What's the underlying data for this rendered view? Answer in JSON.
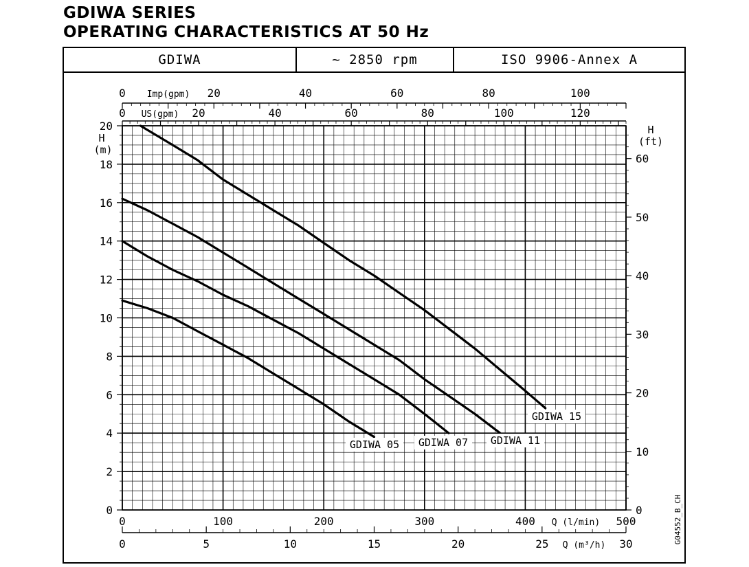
{
  "page": {
    "title_line1": "GDIWA SERIES",
    "title_line2": "OPERATING CHARACTERISTICS AT 50 Hz"
  },
  "header": {
    "model": "GDIWA",
    "speed": "~ 2850 rpm",
    "standard": "ISO 9906-Annex A"
  },
  "chart_data": {
    "type": "line",
    "series": [
      {
        "name": "GDIWA 05",
        "x": [
          0,
          25,
          50,
          75,
          100,
          125,
          150,
          175,
          200,
          225,
          250
        ],
        "y": [
          10.9,
          10.5,
          10.0,
          9.3,
          8.6,
          7.9,
          7.1,
          6.3,
          5.5,
          4.6,
          3.8
        ]
      },
      {
        "name": "GDIWA 07",
        "x": [
          0,
          25,
          50,
          75,
          100,
          125,
          150,
          175,
          200,
          225,
          250,
          275,
          300,
          324
        ],
        "y": [
          14.0,
          13.2,
          12.5,
          11.9,
          11.2,
          10.6,
          9.9,
          9.2,
          8.4,
          7.6,
          6.8,
          6.0,
          5.0,
          4.0
        ]
      },
      {
        "name": "GDIWA 11",
        "x": [
          0,
          25,
          50,
          75,
          100,
          125,
          150,
          175,
          200,
          225,
          250,
          275,
          300,
          325,
          350,
          375
        ],
        "y": [
          16.2,
          15.6,
          14.9,
          14.2,
          13.4,
          12.6,
          11.8,
          11.0,
          10.2,
          9.4,
          8.6,
          7.8,
          6.8,
          5.9,
          5.0,
          4.0
        ]
      },
      {
        "name": "GDIWA 15",
        "x": [
          18,
          50,
          75,
          100,
          125,
          150,
          175,
          200,
          225,
          250,
          275,
          300,
          325,
          350,
          375,
          400,
          420
        ],
        "y": [
          20.0,
          19.0,
          18.2,
          17.2,
          16.4,
          15.6,
          14.8,
          13.9,
          13.0,
          12.2,
          11.3,
          10.4,
          9.4,
          8.4,
          7.3,
          6.2,
          5.3
        ]
      }
    ],
    "left_axis": {
      "label_line1": "H",
      "label_line2": "(m)",
      "range": [
        0,
        20
      ],
      "ticks": [
        "0",
        "2",
        "4",
        "6",
        "8",
        "10",
        "12",
        "14",
        "16",
        "18",
        "20"
      ]
    },
    "right_axis": {
      "label_line1": "H",
      "label_line2": "(ft)",
      "range": [
        0,
        65.6
      ],
      "ticks": [
        "0",
        "10",
        "20",
        "30",
        "40",
        "50",
        "60"
      ]
    },
    "bottom_axis_1": {
      "label": "Q (l/min)",
      "range": [
        0,
        500
      ],
      "ticks": [
        "0",
        "100",
        "200",
        "300",
        "400",
        "500"
      ]
    },
    "bottom_axis_2": {
      "label": "Q (m³/h)",
      "range": [
        0,
        30
      ],
      "ticks": [
        "0",
        "5",
        "10",
        "15",
        "20",
        "25",
        "30"
      ]
    },
    "top_axis_1": {
      "label": "Imp(gpm)",
      "range": [
        0,
        110
      ],
      "ticks": [
        "0",
        "20",
        "40",
        "60",
        "80",
        "100"
      ]
    },
    "top_axis_2": {
      "label": "US(gpm)",
      "range": [
        0,
        132
      ],
      "ticks": [
        "0",
        "20",
        "40",
        "60",
        "80",
        "100",
        "120"
      ]
    },
    "grid": true,
    "code": "G04552_B_CH"
  }
}
